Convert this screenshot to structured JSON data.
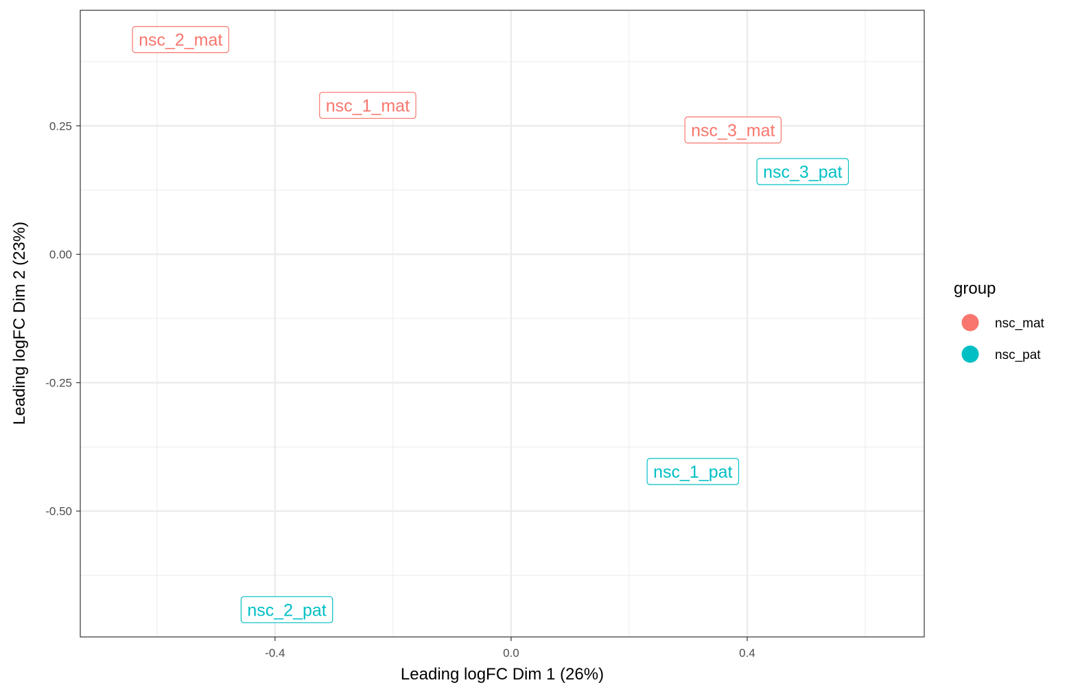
{
  "chart_data": {
    "type": "scatter",
    "title": "",
    "xlabel": "Leading logFC Dim 1 (26%)",
    "ylabel": "Leading logFC Dim 2 (23%)",
    "xlim": [
      -0.73,
      0.7
    ],
    "ylim": [
      -0.745,
      0.475
    ],
    "x_ticks": [
      {
        "value": -0.4,
        "label": "-0.4"
      },
      {
        "value": 0.0,
        "label": "0.0"
      },
      {
        "value": 0.4,
        "label": "0.4"
      }
    ],
    "y_ticks": [
      {
        "value": 0.25,
        "label": "0.25"
      },
      {
        "value": 0.0,
        "label": "0.00"
      },
      {
        "value": -0.25,
        "label": "-0.25"
      },
      {
        "value": -0.5,
        "label": "-0.50"
      }
    ],
    "grid": true,
    "legend": {
      "title": "group",
      "position": "right",
      "entries": [
        {
          "label": "nsc_mat",
          "color": "#F8766D"
        },
        {
          "label": "nsc_pat",
          "color": "#00BFC4"
        }
      ]
    },
    "series": [
      {
        "name": "nsc_mat",
        "color": "#F8766D",
        "points": [
          {
            "label": "nsc_2_mat",
            "x": -0.56,
            "y": 0.418
          },
          {
            "label": "nsc_1_mat",
            "x": -0.243,
            "y": 0.29
          },
          {
            "label": "nsc_3_mat",
            "x": 0.376,
            "y": 0.242
          }
        ]
      },
      {
        "name": "nsc_pat",
        "color": "#00BFC4",
        "points": [
          {
            "label": "nsc_3_pat",
            "x": 0.494,
            "y": 0.161
          },
          {
            "label": "nsc_1_pat",
            "x": 0.308,
            "y": -0.423
          },
          {
            "label": "nsc_2_pat",
            "x": -0.38,
            "y": -0.692
          }
        ]
      }
    ]
  }
}
